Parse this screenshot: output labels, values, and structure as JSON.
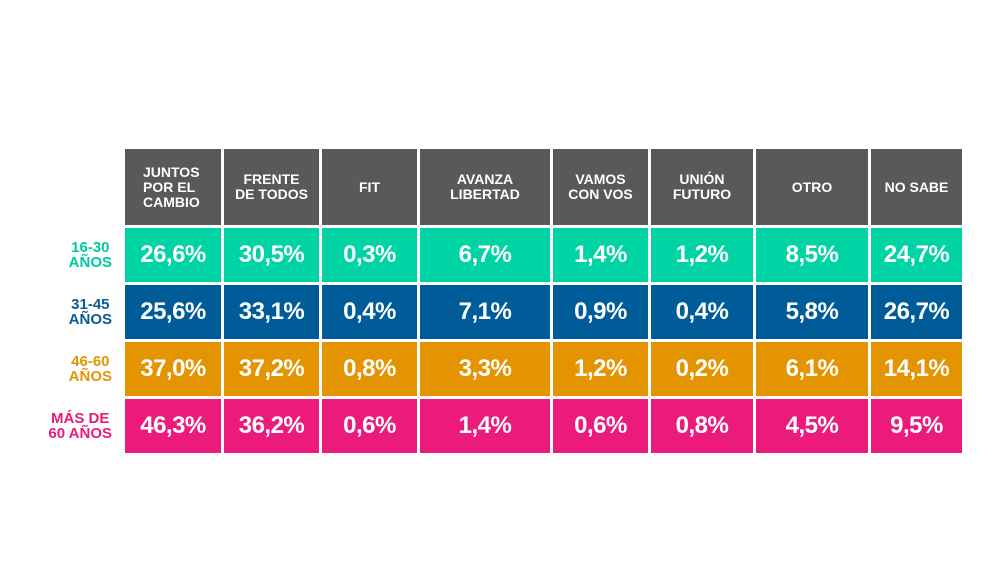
{
  "chart_data": {
    "type": "table",
    "columns": [
      "JUNTOS\nPOR EL\nCAMBIO",
      "FRENTE\nDE TODOS",
      "FIT",
      "AVANZA\nLIBERTAD",
      "VAMOS\nCON VOS",
      "UNIÓN\nFUTURO",
      "OTRO",
      "NO SABE"
    ],
    "rows": [
      {
        "label": "16-30\nAÑOS",
        "color": "#00D4A4",
        "label_color": "#00C9A0",
        "values": [
          "26,6%",
          "30,5%",
          "0,3%",
          "6,7%",
          "1,4%",
          "1,2%",
          "8,5%",
          "24,7%"
        ]
      },
      {
        "label": "31-45\nAÑOS",
        "color": "#005C99",
        "label_color": "#0A5A93",
        "values": [
          "25,6%",
          "33,1%",
          "0,4%",
          "7,1%",
          "0,9%",
          "0,4%",
          "5,8%",
          "26,7%"
        ]
      },
      {
        "label": "46-60\nAÑOS",
        "color": "#E39400",
        "label_color": "#E39400",
        "values": [
          "37,0%",
          "37,2%",
          "0,8%",
          "3,3%",
          "1,2%",
          "0,2%",
          "6,1%",
          "14,1%"
        ]
      },
      {
        "label": "MÁS DE\n60 AÑOS",
        "color": "#EC1A7B",
        "label_color": "#EC1A7B",
        "values": [
          "46,3%",
          "36,2%",
          "0,6%",
          "1,4%",
          "0,6%",
          "0,8%",
          "4,5%",
          "9,5%"
        ]
      }
    ],
    "header_color": "#595959"
  }
}
